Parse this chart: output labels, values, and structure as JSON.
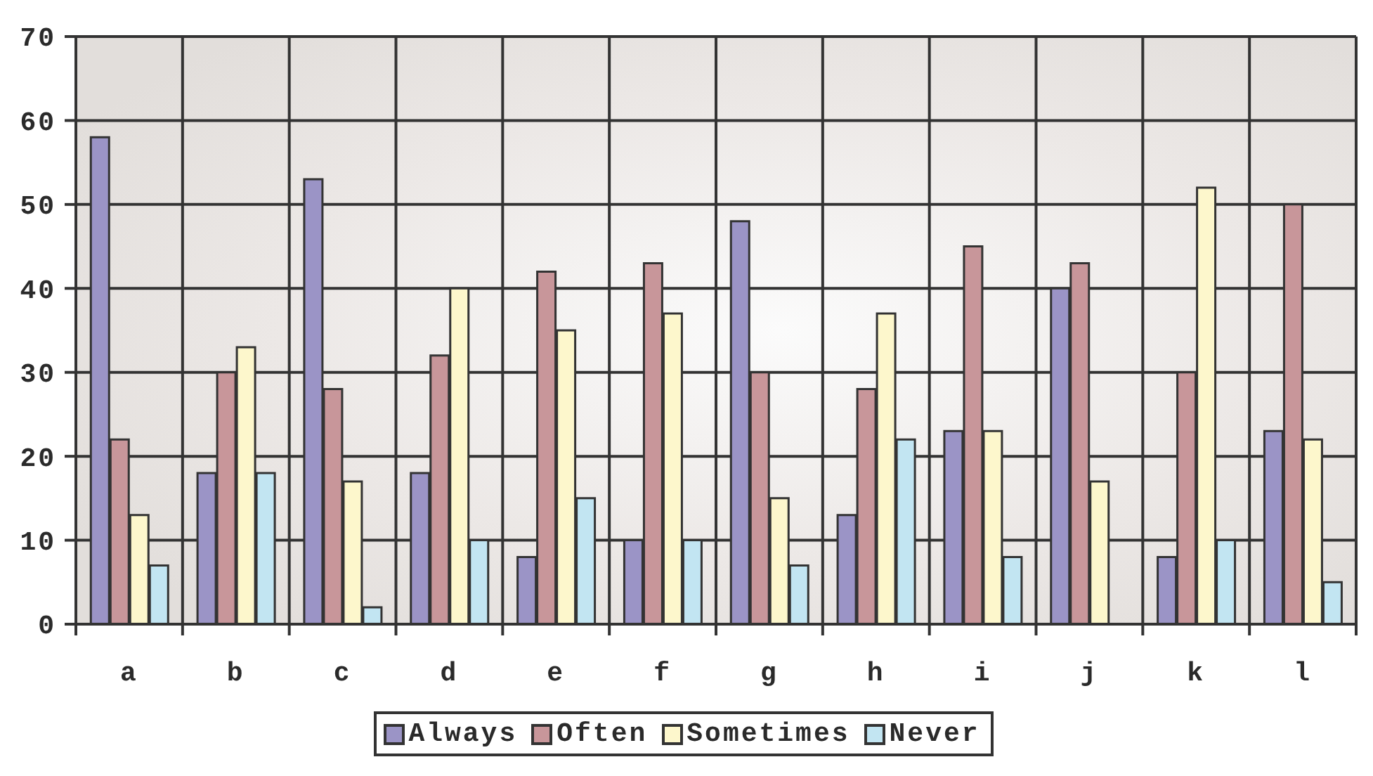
{
  "chart_data": {
    "type": "bar",
    "categories": [
      "a",
      "b",
      "c",
      "d",
      "e",
      "f",
      "g",
      "h",
      "i",
      "j",
      "k",
      "l"
    ],
    "series": [
      {
        "name": "Always",
        "color": "#9b94c6",
        "values": [
          58,
          18,
          53,
          18,
          8,
          10,
          48,
          13,
          23,
          40,
          8,
          23
        ]
      },
      {
        "name": "Often",
        "color": "#c8969a",
        "values": [
          22,
          30,
          28,
          32,
          42,
          43,
          30,
          28,
          45,
          43,
          30,
          50
        ]
      },
      {
        "name": "Sometimes",
        "color": "#fdf7cc",
        "values": [
          13,
          33,
          17,
          40,
          35,
          37,
          15,
          37,
          23,
          17,
          52,
          22
        ]
      },
      {
        "name": "Never",
        "color": "#c2e5f2",
        "values": [
          7,
          18,
          2,
          10,
          15,
          10,
          7,
          22,
          8,
          0,
          10,
          5
        ]
      }
    ],
    "ylim": [
      0,
      70
    ],
    "yticks": [
      0,
      10,
      20,
      30,
      40,
      50,
      60,
      70
    ],
    "grid": true,
    "legend": "bottom"
  }
}
